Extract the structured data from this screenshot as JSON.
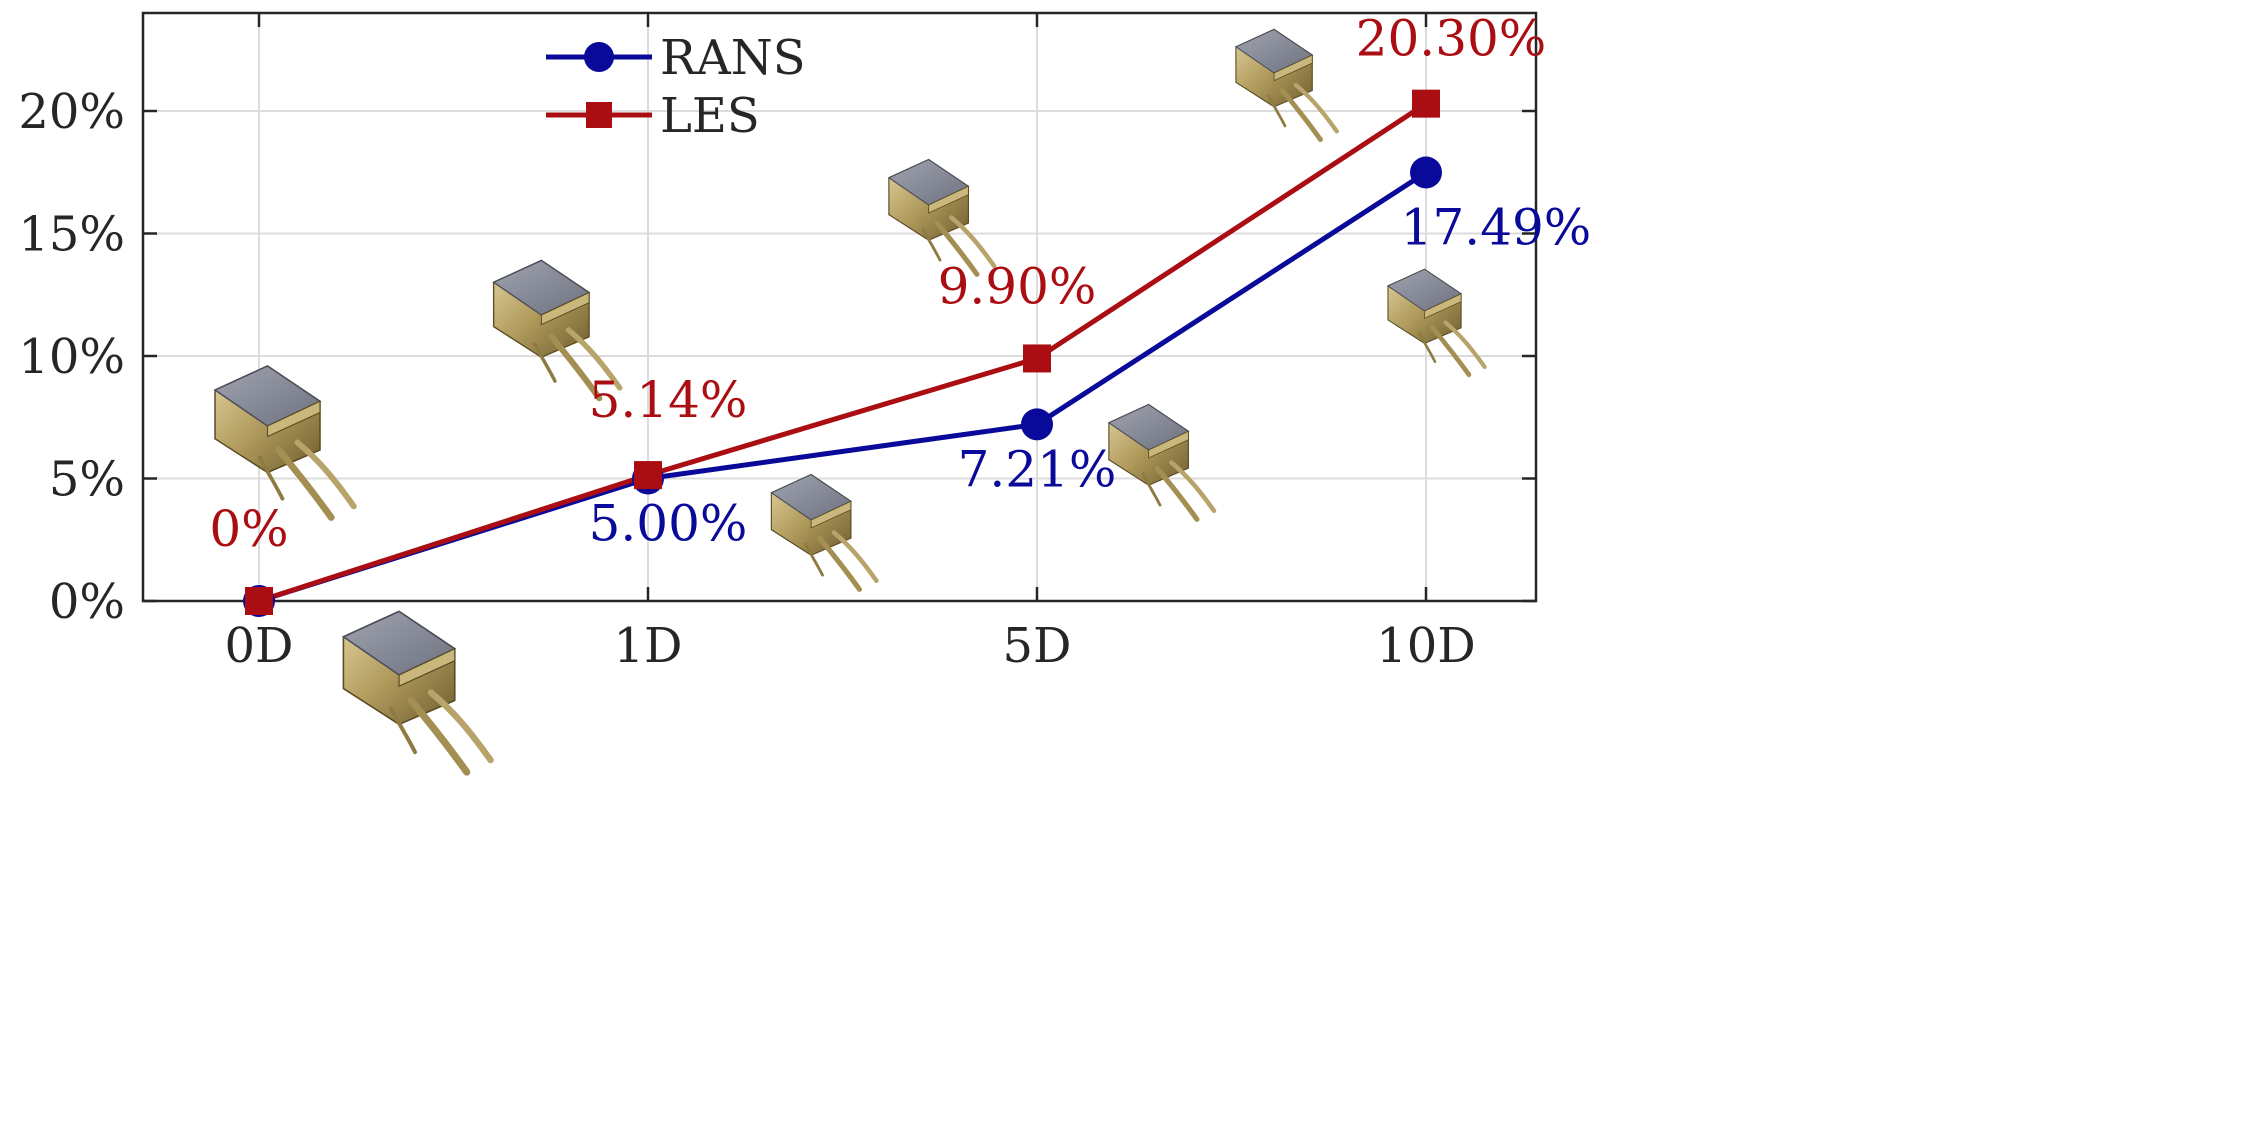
{
  "chart_data": {
    "type": "line",
    "categories": [
      "0D",
      "1D",
      "5D",
      "10D"
    ],
    "ylim": [
      0,
      24
    ],
    "yticks": [
      0,
      5,
      10,
      15,
      20
    ],
    "ytick_labels": [
      "0%",
      "5%",
      "10%",
      "15%",
      "20%"
    ],
    "grid": true,
    "legend_position": "top-center",
    "series": [
      {
        "name": "RANS",
        "color": "#0a0a9a",
        "marker": "circle",
        "values": [
          0,
          5.0,
          7.21,
          17.49
        ],
        "labels": [
          "",
          "5.00%",
          "7.21%",
          "17.49%"
        ]
      },
      {
        "name": "LES",
        "color": "#aa0d12",
        "marker": "square",
        "values": [
          0,
          5.14,
          9.9,
          20.3
        ],
        "labels": [
          "0%",
          "5.14%",
          "9.90%",
          "20.30%"
        ]
      }
    ],
    "annotations": [
      {
        "type": "wake-render-icon"
      },
      {
        "type": "wake-render-icon"
      },
      {
        "type": "wake-render-icon"
      },
      {
        "type": "wake-render-icon"
      },
      {
        "type": "wake-render-icon"
      },
      {
        "type": "wake-render-icon"
      },
      {
        "type": "wake-render-icon"
      },
      {
        "type": "wake-render-icon"
      }
    ]
  }
}
